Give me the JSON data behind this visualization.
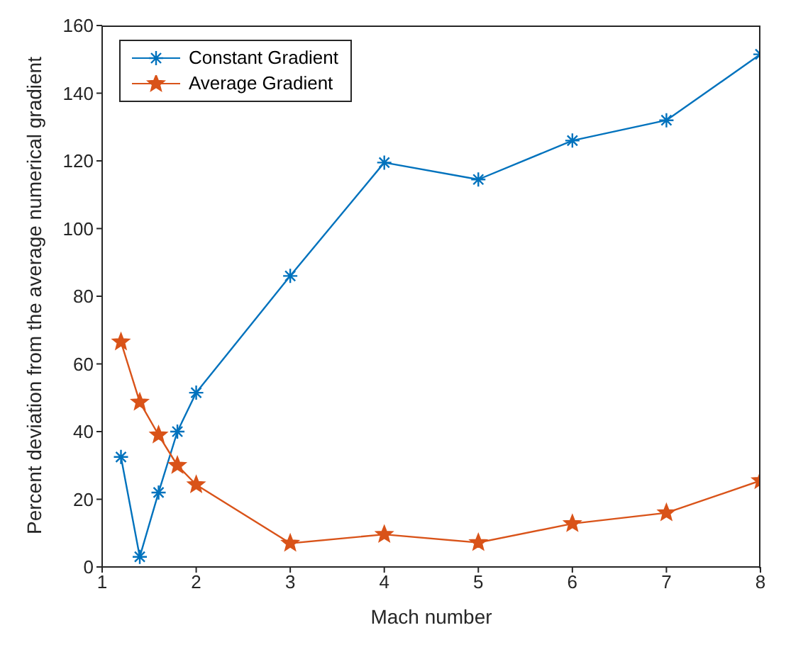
{
  "chart_data": {
    "type": "line",
    "xlabel": "Mach number",
    "ylabel": "Percent deviation from the average numerical gradient",
    "x": [
      1.2,
      1.4,
      1.6,
      1.8,
      2,
      3,
      4,
      5,
      6,
      7,
      8
    ],
    "series": [
      {
        "name": "Constant Gradient",
        "color": "#0072bd",
        "marker": "cross",
        "values": [
          32.5,
          3,
          22,
          40,
          51.5,
          86,
          119.5,
          114.5,
          126,
          132,
          151.5
        ]
      },
      {
        "name": "Average Gradient",
        "color": "#d95319",
        "marker": "star",
        "values": [
          66.5,
          48.7,
          39,
          30,
          24.3,
          7,
          9.6,
          7.2,
          12.8,
          16,
          25.5
        ]
      }
    ],
    "xlim": [
      1,
      8
    ],
    "xticks": [
      1,
      2,
      3,
      4,
      5,
      6,
      7,
      8
    ],
    "ylim": [
      0,
      160
    ],
    "yticks": [
      0,
      20,
      40,
      60,
      80,
      100,
      120,
      140,
      160
    ],
    "grid": false,
    "legend": "top left",
    "line_style": "solid"
  }
}
